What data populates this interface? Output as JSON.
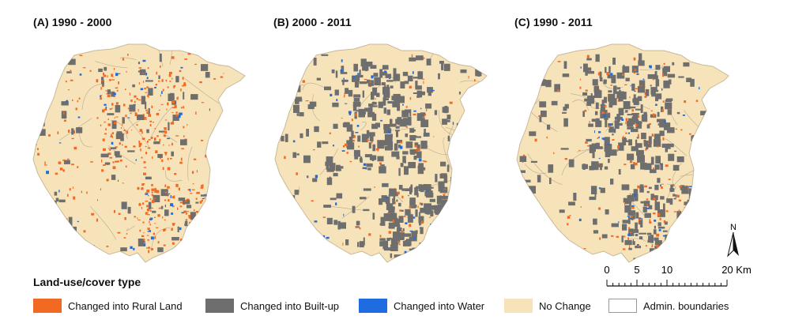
{
  "panels": [
    {
      "title": "(A) 1990 - 2000",
      "change_mix": {
        "rural": 0.75,
        "builtup": 0.15,
        "water": 0.1
      }
    },
    {
      "title": "(B) 2000 - 2011",
      "change_mix": {
        "rural": 0.18,
        "builtup": 0.72,
        "water": 0.1
      }
    },
    {
      "title": "(C) 1990 - 2011",
      "change_mix": {
        "rural": 0.35,
        "builtup": 0.55,
        "water": 0.1
      }
    }
  ],
  "legend": {
    "title": "Land-use/cover type",
    "items": [
      {
        "label": "Changed into Rural Land",
        "color": "#f26a21",
        "key": "rural"
      },
      {
        "label": "Changed into Built-up",
        "color": "#6e6e6e",
        "key": "builtup"
      },
      {
        "label": "Changed into Water",
        "color": "#1f6be0",
        "key": "water"
      },
      {
        "label": "No Change",
        "color": "#f7e3b9",
        "key": "nochange"
      },
      {
        "label": "Admin. boundaries",
        "color": "#ffffff",
        "key": "admin"
      }
    ]
  },
  "north_arrow": {
    "label": "N"
  },
  "scale_bar": {
    "ticks": [
      "0",
      "5",
      "10",
      "20 Km"
    ]
  },
  "colors": {
    "nochange": "#f7e3b9",
    "boundary": "#b8ab92",
    "outline": "#c8b99a"
  }
}
